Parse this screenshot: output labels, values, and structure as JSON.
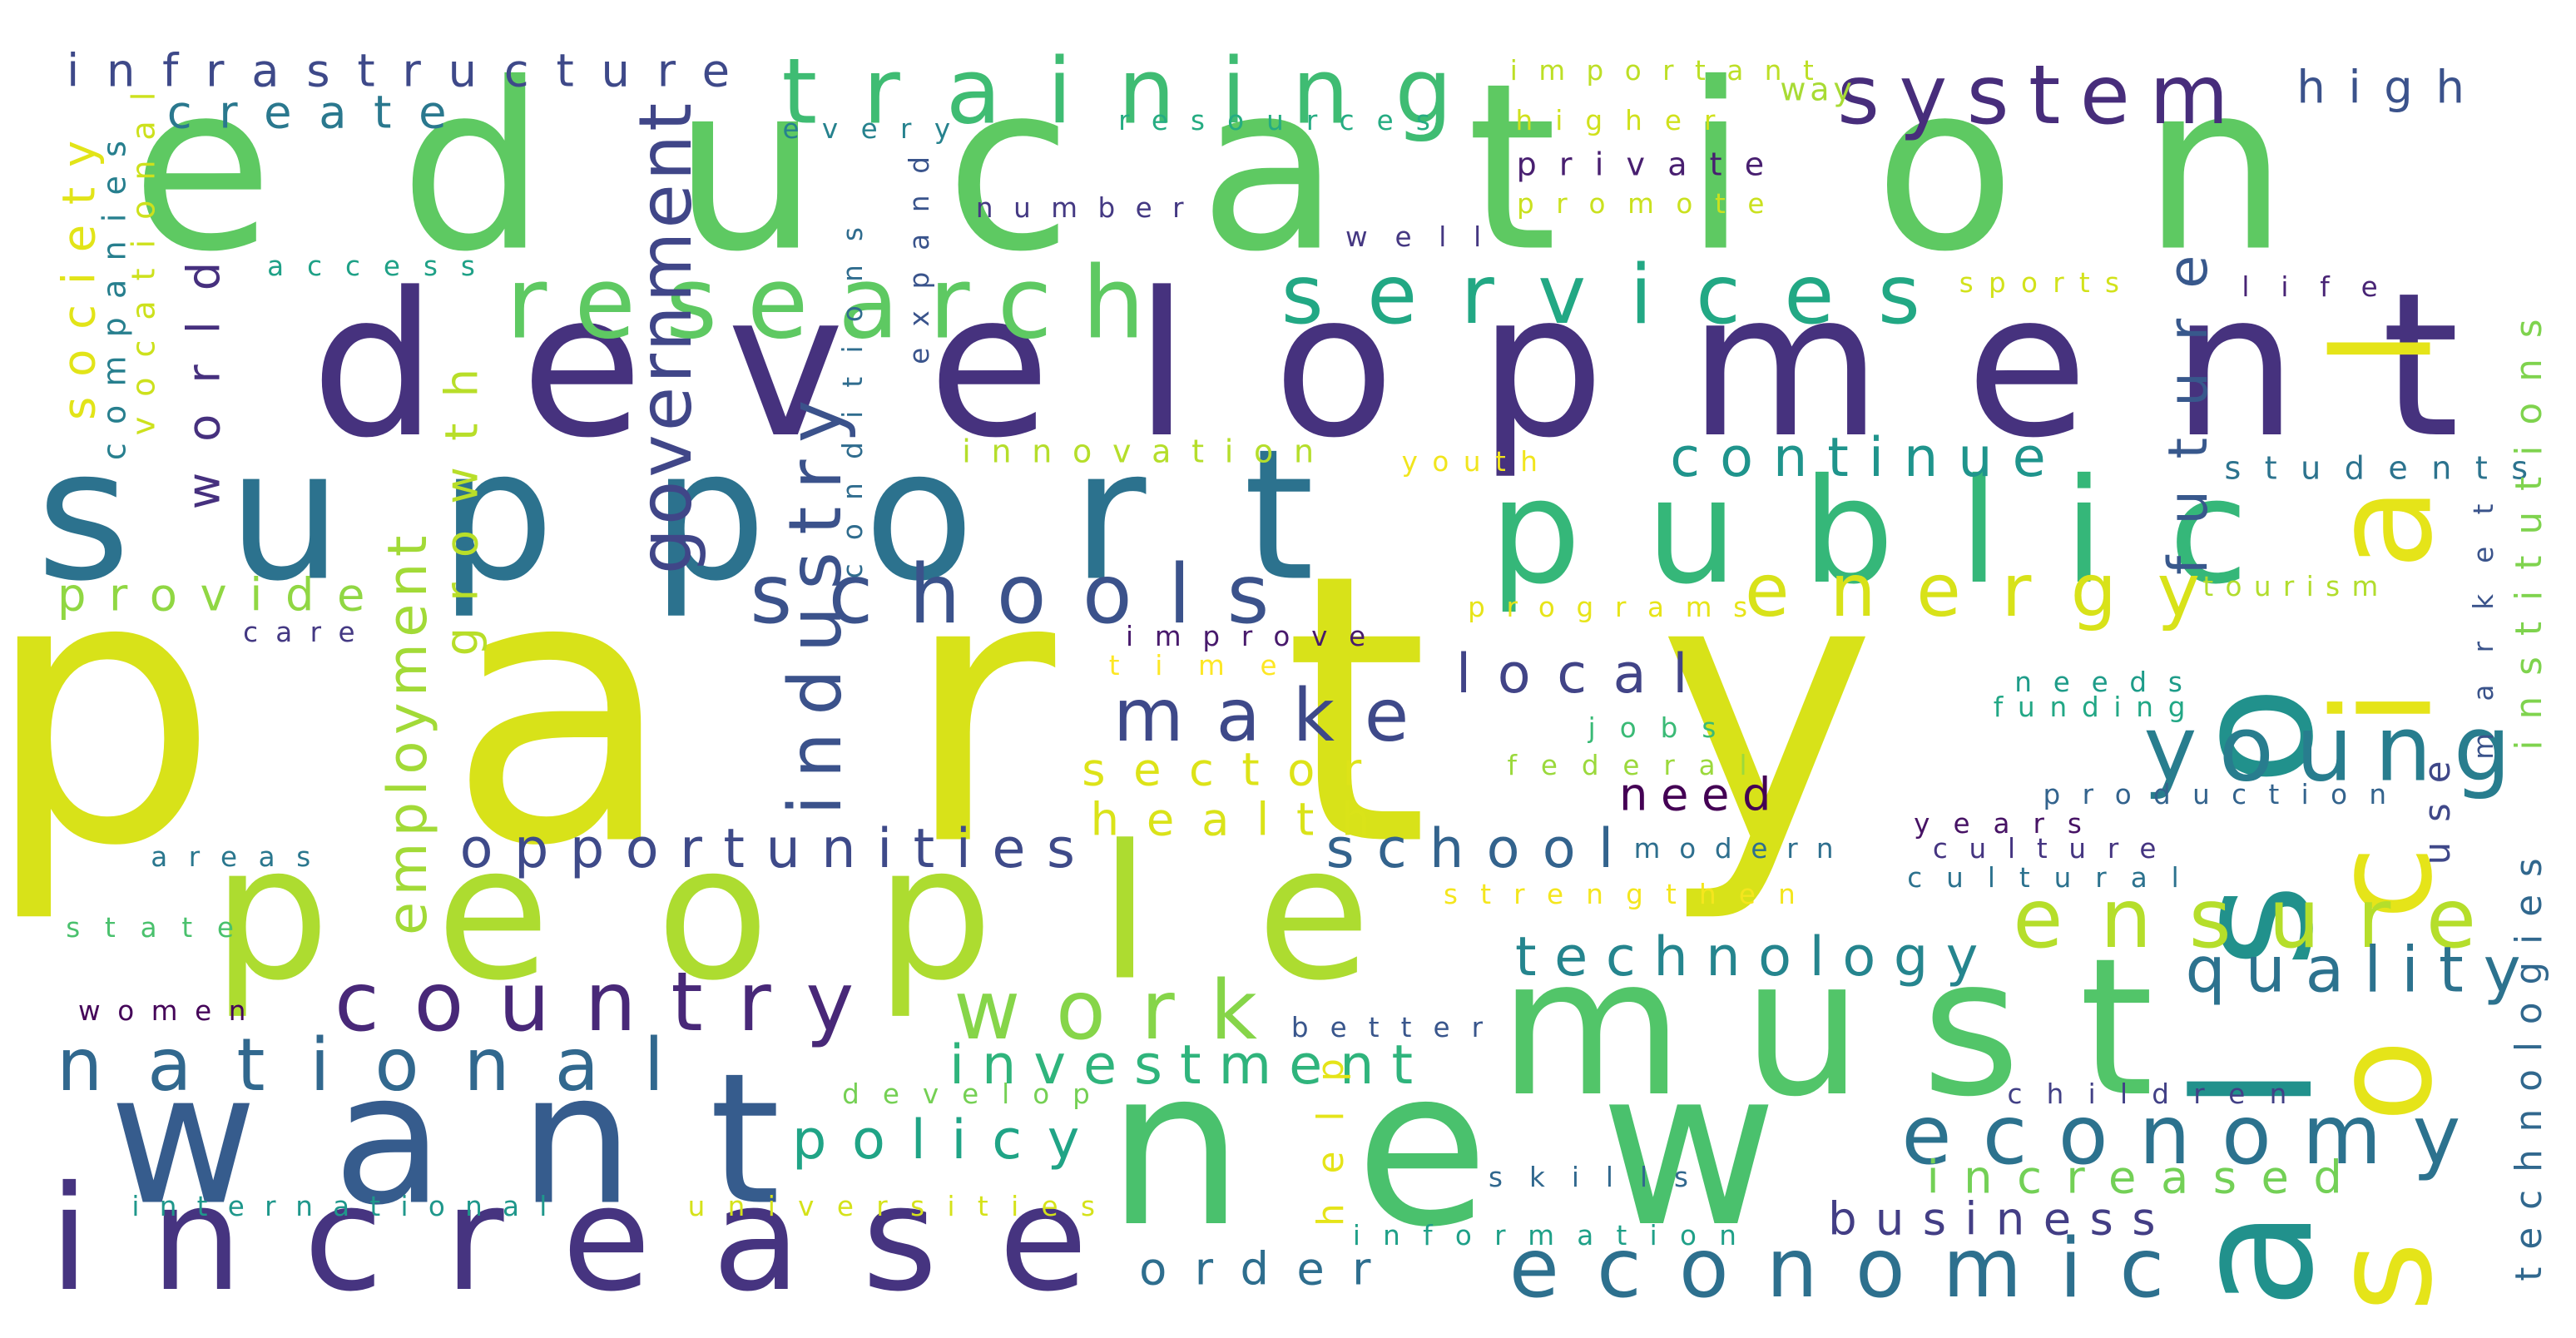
{
  "words": [
    {
      "text": "party",
      "color": "#d8e219"
    },
    {
      "text": "education",
      "color": "#5ec962"
    },
    {
      "text": "development",
      "color": "#46327e"
    },
    {
      "text": "support",
      "color": "#2c728e"
    },
    {
      "text": "people",
      "color": "#addc30"
    },
    {
      "text": "new",
      "color": "#4ac16d"
    },
    {
      "text": "want",
      "color": "#365c8d"
    },
    {
      "text": "also",
      "color": "#21918c"
    },
    {
      "text": "social",
      "color": "#e5e419"
    },
    {
      "text": "must",
      "color": "#52c569"
    },
    {
      "text": "increase",
      "color": "#463480"
    },
    {
      "text": "public",
      "color": "#35b779"
    },
    {
      "text": "training",
      "color": "#3fbc73"
    },
    {
      "text": "research",
      "color": "#5ec962"
    },
    {
      "text": "system",
      "color": "#472d7b"
    },
    {
      "text": "services",
      "color": "#22a884"
    },
    {
      "text": "schools",
      "color": "#3b528b"
    },
    {
      "text": "energy",
      "color": "#d8e219"
    },
    {
      "text": "country",
      "color": "#482878"
    },
    {
      "text": "national",
      "color": "#31688e"
    },
    {
      "text": "work",
      "color": "#86d549"
    },
    {
      "text": "economy",
      "color": "#2c728e"
    },
    {
      "text": "economic",
      "color": "#2d708e"
    },
    {
      "text": "young",
      "color": "#287d8e"
    },
    {
      "text": "ensure",
      "color": "#b5de2b"
    },
    {
      "text": "make",
      "color": "#3e4989"
    },
    {
      "text": "government",
      "color": "#404688"
    },
    {
      "text": "industry",
      "color": "#3b528b"
    },
    {
      "text": "employment",
      "color": "#a2da37"
    },
    {
      "text": "infrastructure",
      "color": "#3e4989"
    },
    {
      "text": "high",
      "color": "#3b528b"
    },
    {
      "text": "create",
      "color": "#2a788e"
    },
    {
      "text": "continue",
      "color": "#1f948c"
    },
    {
      "text": "future",
      "color": "#38588c"
    },
    {
      "text": "local",
      "color": "#414487"
    },
    {
      "text": "opportunities",
      "color": "#3e4a89"
    },
    {
      "text": "school",
      "color": "#33638d"
    },
    {
      "text": "technology",
      "color": "#25858e"
    },
    {
      "text": "quality",
      "color": "#2c728e"
    },
    {
      "text": "investment",
      "color": "#2fb47c"
    },
    {
      "text": "policy",
      "color": "#20a486"
    },
    {
      "text": "increased",
      "color": "#73d056"
    },
    {
      "text": "business",
      "color": "#433e85"
    },
    {
      "text": "order",
      "color": "#2e6e8e"
    },
    {
      "text": "sector",
      "color": "#dde318"
    },
    {
      "text": "health",
      "color": "#dae319"
    },
    {
      "text": "need",
      "color": "#440154"
    },
    {
      "text": "society",
      "color": "#e2e418"
    },
    {
      "text": "world",
      "color": "#46307e"
    },
    {
      "text": "growth",
      "color": "#b8de29"
    },
    {
      "text": "provide",
      "color": "#90d743"
    },
    {
      "text": "important",
      "color": "#bddf26"
    },
    {
      "text": "way",
      "color": "#a8db34"
    },
    {
      "text": "higher",
      "color": "#d0e11c"
    },
    {
      "text": "private",
      "color": "#481f70"
    },
    {
      "text": "promote",
      "color": "#cae11f"
    },
    {
      "text": "resources",
      "color": "#25ac82"
    },
    {
      "text": "every",
      "color": "#26828e"
    },
    {
      "text": "number",
      "color": "#443983"
    },
    {
      "text": "well",
      "color": "#453882"
    },
    {
      "text": "access",
      "color": "#1fa187"
    },
    {
      "text": "companies",
      "color": "#277f8e"
    },
    {
      "text": "vocational",
      "color": "#cde11d"
    },
    {
      "text": "expand",
      "color": "#3a548c"
    },
    {
      "text": "conditions",
      "color": "#2f6c8e"
    },
    {
      "text": "innovation",
      "color": "#b5de2b"
    },
    {
      "text": "youth",
      "color": "#f1e51d"
    },
    {
      "text": "sports",
      "color": "#d2e21b"
    },
    {
      "text": "life",
      "color": "#482475"
    },
    {
      "text": "students",
      "color": "#2c738e"
    },
    {
      "text": "institutions",
      "color": "#7fd34e"
    },
    {
      "text": "market",
      "color": "#3a538b"
    },
    {
      "text": "tourism",
      "color": "#b2dd2d"
    },
    {
      "text": "use",
      "color": "#3f4889"
    },
    {
      "text": "needs",
      "color": "#1e9c89"
    },
    {
      "text": "funding",
      "color": "#22a785"
    },
    {
      "text": "production",
      "color": "#33638d"
    },
    {
      "text": "years",
      "color": "#471365"
    },
    {
      "text": "culture",
      "color": "#453581"
    },
    {
      "text": "cultural",
      "color": "#2c728e"
    },
    {
      "text": "modern",
      "color": "#2e6f8e"
    },
    {
      "text": "strengthen",
      "color": "#f4e61e"
    },
    {
      "text": "jobs",
      "color": "#3aba76"
    },
    {
      "text": "federal",
      "color": "#9bd93c"
    },
    {
      "text": "programs",
      "color": "#e7e419"
    },
    {
      "text": "improve",
      "color": "#481a6c"
    },
    {
      "text": "time",
      "color": "#fde725"
    },
    {
      "text": "care",
      "color": "#443983"
    },
    {
      "text": "areas",
      "color": "#2a778e"
    },
    {
      "text": "state",
      "color": "#4ac16d"
    },
    {
      "text": "women",
      "color": "#450559"
    },
    {
      "text": "better",
      "color": "#39568c"
    },
    {
      "text": "help",
      "color": "#e5e419"
    },
    {
      "text": "develop",
      "color": "#75d054"
    },
    {
      "text": "children",
      "color": "#424086"
    },
    {
      "text": "technologies",
      "color": "#31688e"
    },
    {
      "text": "skills",
      "color": "#31688e"
    },
    {
      "text": "information",
      "color": "#1fa088"
    },
    {
      "text": "international",
      "color": "#1f978b"
    },
    {
      "text": "universities",
      "color": "#d5e21a"
    }
  ]
}
